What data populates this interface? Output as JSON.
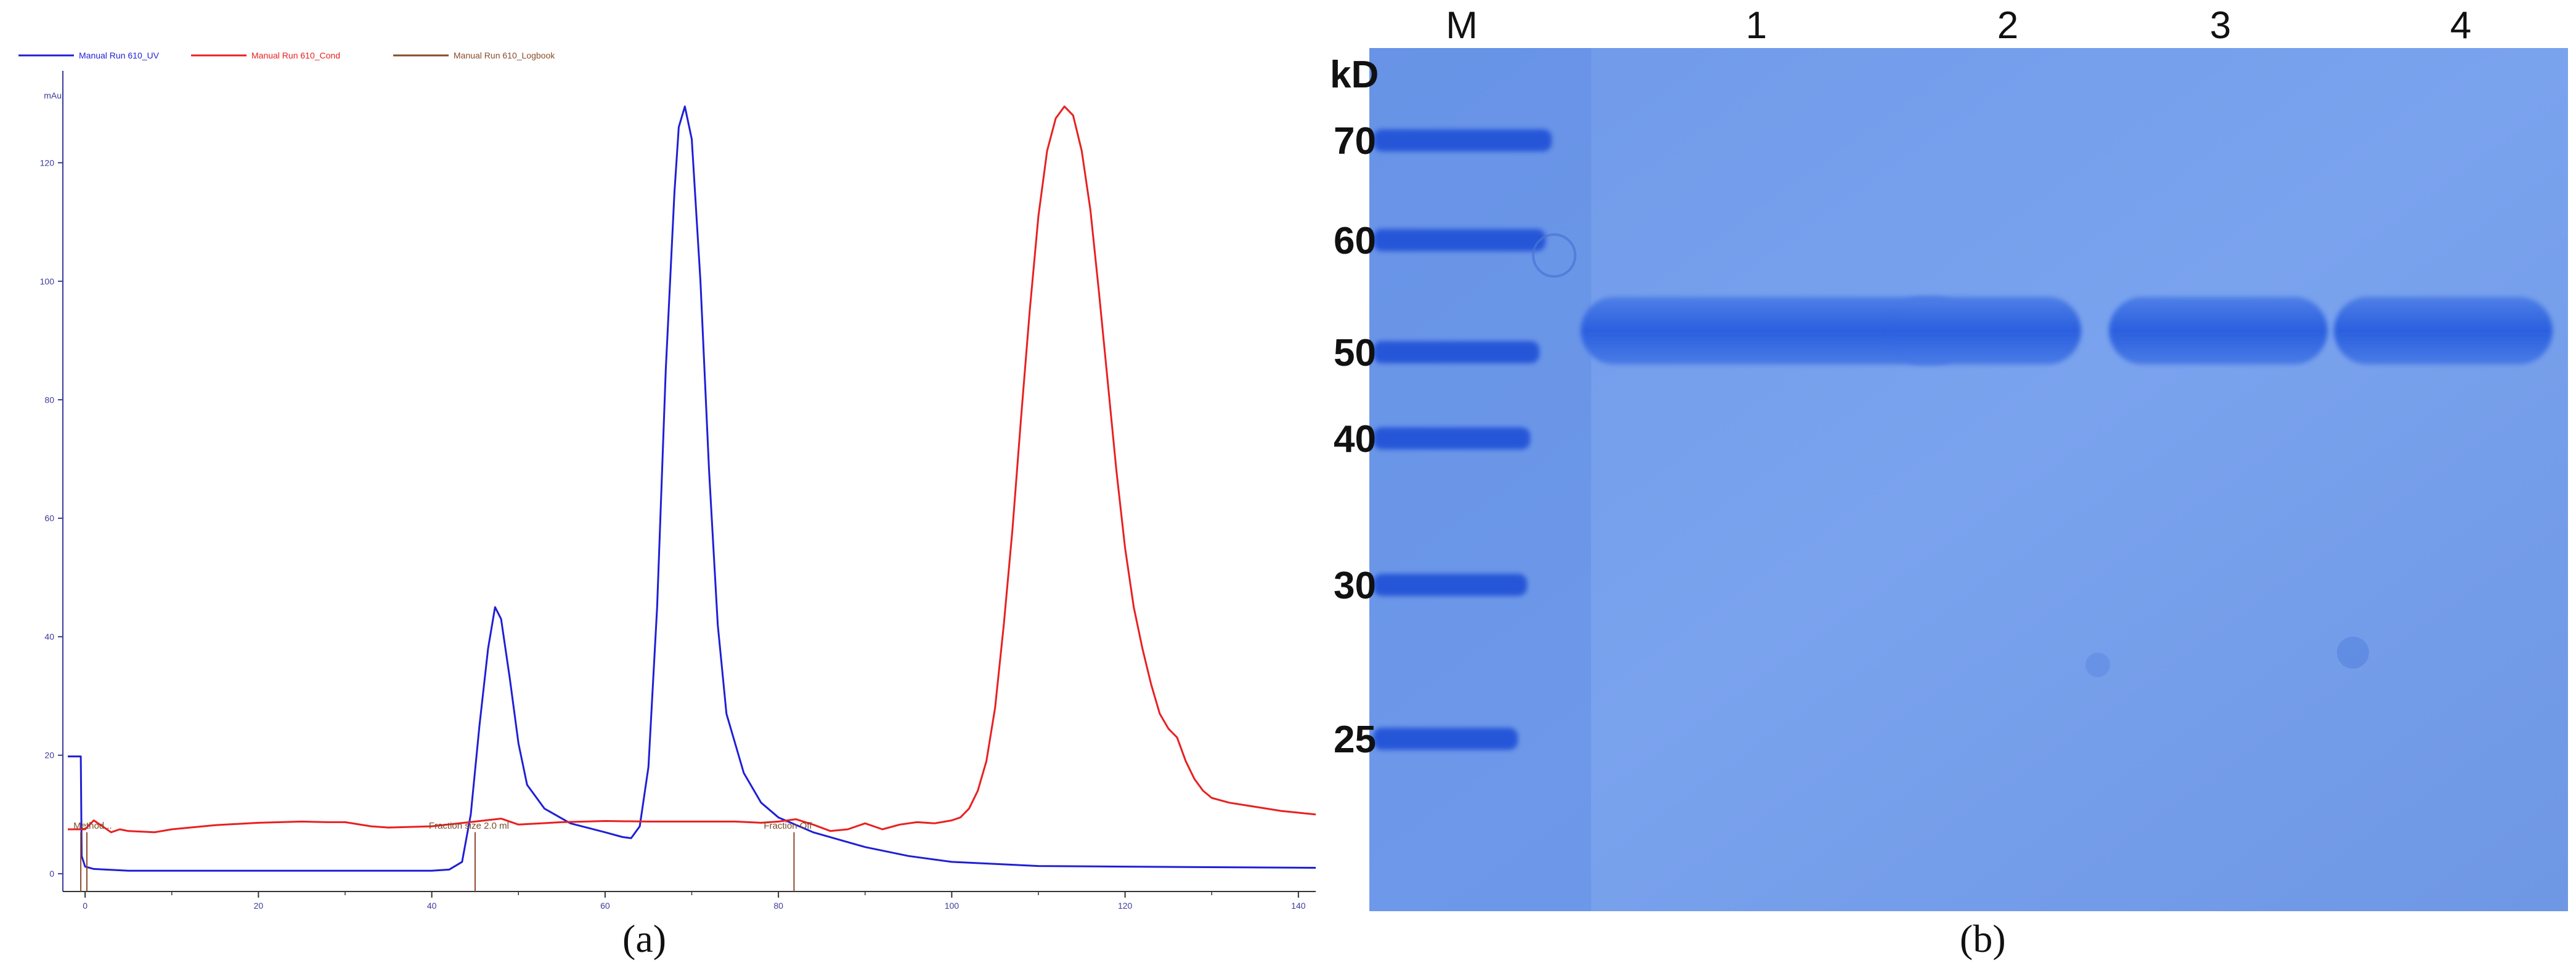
{
  "chart_data": [
    {
      "type": "line",
      "legend": [
        {
          "name": "Manual Run 610_UV",
          "color": "#1f1fd6"
        },
        {
          "name": "Manual Run 610_Cond",
          "color": "#e82020"
        },
        {
          "name": "Manual Run 610_Logbook",
          "color": "#8b4a2b"
        }
      ],
      "ylabel": "mAu",
      "xlim": [
        -2,
        142
      ],
      "ylim": [
        -3,
        135
      ],
      "x_ticks": [
        0,
        20,
        40,
        60,
        80,
        100,
        120,
        140
      ],
      "y_ticks": [
        0,
        20,
        40,
        60,
        80,
        100,
        120
      ],
      "series": [
        {
          "name": "Manual Run 610_UV",
          "x": [
            -2,
            -0.5,
            -0.4,
            0,
            1,
            5,
            20,
            40,
            42,
            43.5,
            44.5,
            45.5,
            46.5,
            47.3,
            48,
            49,
            50,
            51,
            53,
            56,
            60,
            62,
            63,
            64,
            65,
            66,
            67,
            68,
            68.5,
            69.2,
            70,
            71,
            72,
            73,
            74,
            76,
            78,
            80,
            84,
            90,
            95,
            100,
            110,
            120,
            130,
            142
          ],
          "y": [
            19.8,
            19.8,
            3,
            1.2,
            0.8,
            0.5,
            0.5,
            0.5,
            0.7,
            2,
            10,
            25,
            38,
            45,
            43,
            33,
            22,
            15,
            11,
            8.5,
            7,
            6.2,
            6,
            8,
            18,
            45,
            85,
            115,
            126,
            129.5,
            124,
            100,
            68,
            42,
            27,
            17,
            12,
            9.5,
            7,
            4.5,
            3,
            2,
            1.3,
            1.2,
            1.1,
            1
          ]
        },
        {
          "name": "Manual Run 610_Cond",
          "x": [
            -2,
            0,
            1,
            2,
            3,
            4,
            5,
            8,
            10,
            15,
            20,
            25,
            28,
            30,
            33,
            35,
            40,
            45,
            48,
            50,
            55,
            60,
            65,
            70,
            75,
            78,
            80,
            82,
            84,
            86,
            88,
            90,
            92,
            94,
            96,
            98,
            100,
            101,
            102,
            103,
            104,
            105,
            106,
            107,
            108,
            109,
            110,
            111,
            112,
            113,
            114,
            115,
            116,
            117,
            118,
            119,
            120,
            121,
            122,
            123,
            124,
            125,
            126,
            127,
            128,
            129,
            130,
            132,
            135,
            138,
            142
          ],
          "y": [
            7.5,
            7.5,
            9,
            8,
            7,
            7.5,
            7.2,
            7,
            7.5,
            8.2,
            8.6,
            8.8,
            8.7,
            8.7,
            8,
            7.8,
            8,
            8.8,
            9.3,
            8.3,
            8.7,
            8.9,
            8.8,
            8.8,
            8.8,
            8.6,
            8.8,
            9.2,
            8.3,
            7.2,
            7.5,
            8.5,
            7.5,
            8.3,
            8.7,
            8.5,
            9,
            9.5,
            11,
            14,
            19,
            28,
            42,
            58,
            77,
            95,
            111,
            122,
            127.5,
            129.5,
            128,
            122,
            112,
            98,
            83,
            68,
            55,
            45,
            38,
            32,
            27,
            24.5,
            23,
            19,
            16,
            14,
            12.8,
            12,
            11.3,
            10.6,
            10
          ]
        }
      ],
      "logbook_markers": [
        {
          "x": -0.5,
          "label": "Method..."
        },
        {
          "x": 0.2,
          "label": ""
        },
        {
          "x": 45,
          "label": "Fraction size 2.0 ml"
        },
        {
          "x": 81.8,
          "label": "Fraction Off"
        }
      ]
    }
  ],
  "panel_a_caption": "(a)",
  "gel": {
    "unit_label": "kD",
    "lanes": [
      "M",
      "1",
      "2",
      "3",
      "4"
    ],
    "marker_labels": [
      "70",
      "60",
      "50",
      "40",
      "30",
      "25"
    ],
    "caption": "(b)"
  }
}
